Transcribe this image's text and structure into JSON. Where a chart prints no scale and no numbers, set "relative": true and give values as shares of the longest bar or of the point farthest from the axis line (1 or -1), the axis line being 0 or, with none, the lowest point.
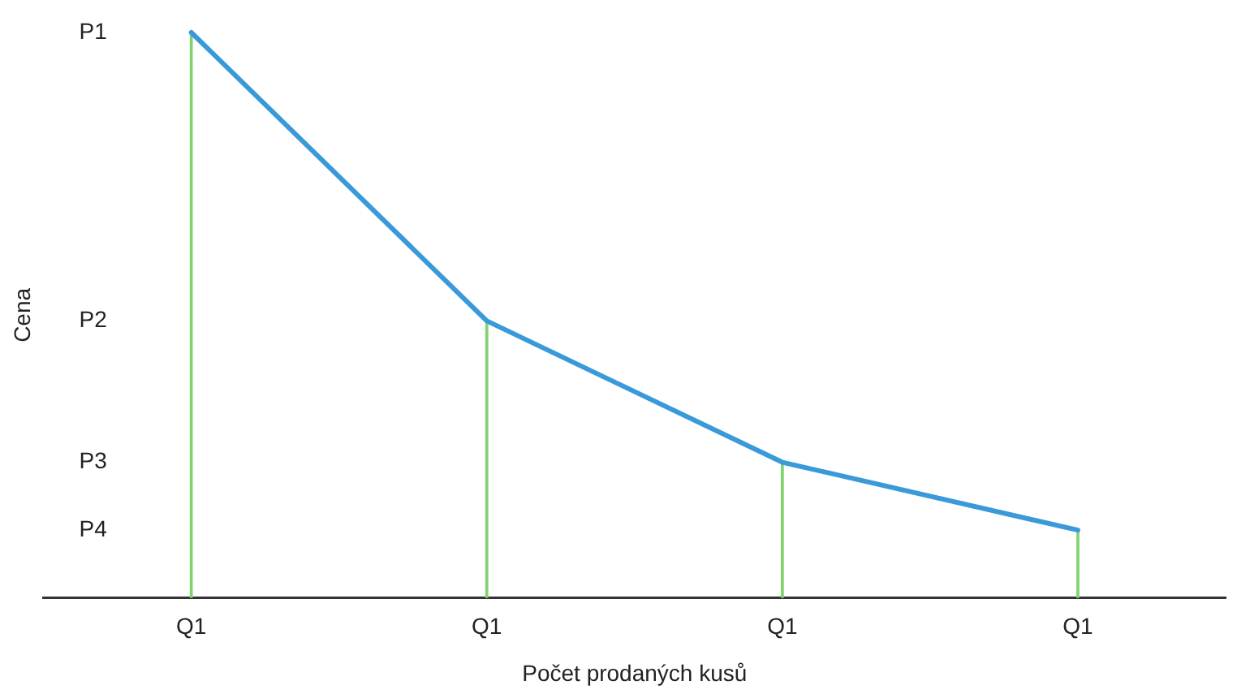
{
  "chart_data": {
    "type": "line",
    "relative": true,
    "xlabel": "Počet prodaných kusů",
    "ylabel": "Cena",
    "categories": [
      "Q1",
      "Q1",
      "Q1",
      "Q1"
    ],
    "series": [
      {
        "type": "bar",
        "color": "#7ed36f",
        "values": [
          1,
          0.49,
          0.24,
          0.12
        ]
      },
      {
        "color": "#3a9ad9",
        "values": [
          1,
          0.49,
          0.24,
          0.12
        ]
      }
    ],
    "annotations": [
      "P1",
      "P2",
      "P3",
      "P4"
    ],
    "grid": false,
    "legend": false,
    "marker": "none",
    "line_style": "solid"
  }
}
